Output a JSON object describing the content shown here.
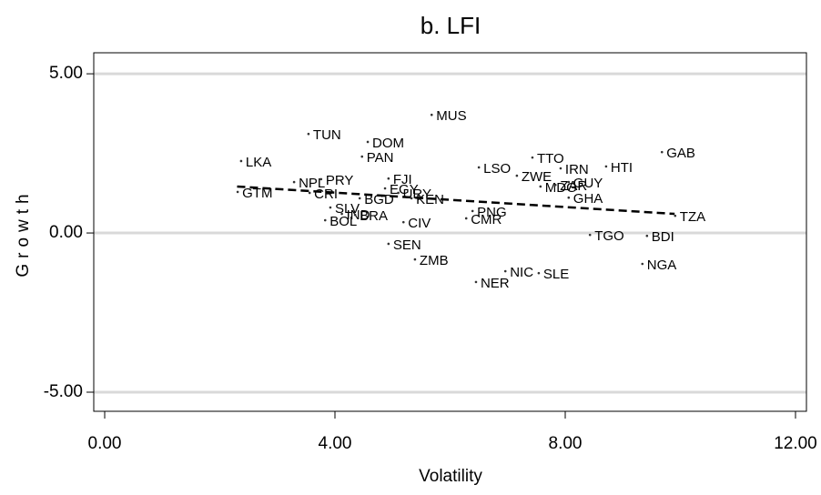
{
  "chart_data": {
    "type": "scatter",
    "title": "b. LFI",
    "x_label": "Volatility",
    "y_label": "Growth",
    "labels": [
      "LKA",
      "GTM",
      "TUN",
      "NPL",
      "PRY",
      "CRI",
      "DOM",
      "PAN",
      "MUS",
      "LSO",
      "TTO",
      "ZWE",
      "IRN",
      "MDG",
      "ZAR",
      "GUY",
      "GHA",
      "HTI",
      "GAB",
      "TZA",
      "TGO",
      "BDI",
      "NGA",
      "SLE",
      "NIC",
      "NER",
      "PNG",
      "CMR",
      "ZMB",
      "SEN",
      "CIV",
      "KEN",
      "EGY",
      "FJI",
      "URY",
      "BGD",
      "SLV",
      "IND",
      "BRA",
      "BOL"
    ],
    "x": [
      2.37,
      2.31,
      3.54,
      3.29,
      3.76,
      3.56,
      4.57,
      4.47,
      5.68,
      6.5,
      7.43,
      7.16,
      7.92,
      7.57,
      7.83,
      8.06,
      8.06,
      8.71,
      9.68,
      9.91,
      8.43,
      9.42,
      9.34,
      7.54,
      6.96,
      6.45,
      6.39,
      6.28,
      5.39,
      4.93,
      5.19,
      5.33,
      4.87,
      4.93,
      5.1,
      4.43,
      3.92,
      4.12,
      4.35,
      3.83
    ],
    "values": [
      2.26,
      1.29,
      3.11,
      1.6,
      1.69,
      1.26,
      2.86,
      2.4,
      3.71,
      2.06,
      2.37,
      1.8,
      2.03,
      1.46,
      1.51,
      1.6,
      1.11,
      2.09,
      2.54,
      0.54,
      -0.06,
      -0.09,
      -0.97,
      -1.26,
      -1.2,
      -1.54,
      0.69,
      0.46,
      -0.83,
      -0.34,
      0.34,
      1.09,
      1.4,
      1.71,
      1.26,
      1.09,
      0.8,
      0.6,
      0.57,
      0.4
    ],
    "color": "#333333",
    "fit_line": {
      "x": [
        2.3,
        9.9
      ],
      "values": [
        1.46,
        0.6
      ],
      "color": "#000000"
    },
    "xlim": [
      -0.19,
      12.19
    ],
    "ylim": [
      -5.6,
      5.66
    ],
    "xticks": [
      {
        "value": 0,
        "label": "0.00"
      },
      {
        "value": 4,
        "label": "4.00"
      },
      {
        "value": 8,
        "label": "8.00"
      },
      {
        "value": 12,
        "label": "12.00"
      }
    ],
    "yticks": [
      {
        "value": -5,
        "label": "-5.00"
      },
      {
        "value": 0,
        "label": "0.00"
      },
      {
        "value": 5,
        "label": "5.00"
      }
    ],
    "grid": true
  }
}
